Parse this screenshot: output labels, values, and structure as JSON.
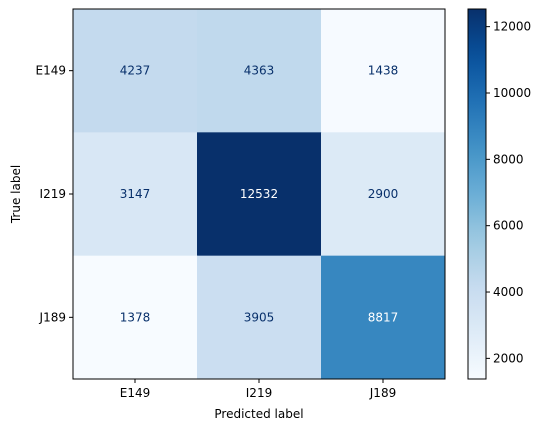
{
  "chart_data": {
    "type": "heatmap",
    "title": "",
    "xlabel": "Predicted label",
    "ylabel": "True label",
    "x_categories": [
      "E149",
      "I219",
      "J189"
    ],
    "y_categories": [
      "E149",
      "I219",
      "J189"
    ],
    "values": [
      [
        4237,
        4363,
        1438
      ],
      [
        3147,
        12532,
        2900
      ],
      [
        1378,
        3905,
        8817
      ]
    ],
    "colormap": "Blues",
    "color_range": [
      1378,
      12532
    ],
    "colorbar_ticks": [
      2000,
      4000,
      6000,
      8000,
      10000,
      12000
    ],
    "colorbar_tick_labels": [
      "2000",
      "4000",
      "6000",
      "8000",
      "10000",
      "12000"
    ],
    "text_color_dark": "#08306b",
    "text_color_light": "#ffffff"
  }
}
